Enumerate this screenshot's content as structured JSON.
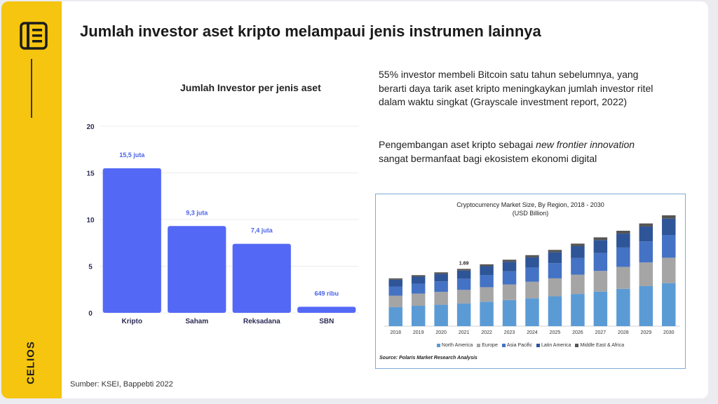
{
  "brand": "CELIOS",
  "title": "Jumlah investor aset kripto melampaui jenis instrumen lainnya",
  "colors": {
    "sidebar": "#f5c50f",
    "bar": "#5468f6",
    "bar_label": "#4b63e8"
  },
  "chart_data": [
    {
      "type": "bar",
      "title": "Jumlah Investor per jenis aset",
      "categories": [
        "Kripto",
        "Saham",
        "Reksadana",
        "SBN"
      ],
      "values": [
        15.5,
        9.3,
        7.4,
        0.649
      ],
      "data_labels": [
        "15,5 juta",
        "9,3 juta",
        "7,4 juta",
        "649 ribu"
      ],
      "yticks": [
        "0",
        "5",
        "10",
        "15",
        "20"
      ],
      "ylim": [
        0,
        20
      ],
      "grid": true,
      "xlabel": "",
      "ylabel": ""
    },
    {
      "type": "bar",
      "stacked": true,
      "title": "Cryptocurrency Market Size, By Region, 2018 - 2030",
      "subtitle": "(USD Billion)",
      "categories": [
        "2018",
        "2019",
        "2020",
        "2021",
        "2022",
        "2023",
        "2024",
        "2025",
        "2026",
        "2027",
        "2028",
        "2029",
        "2030"
      ],
      "annotations": [
        {
          "category": "2021",
          "text": "1.69"
        }
      ],
      "series": [
        {
          "name": "North America",
          "color": "#5b9bd5",
          "values": [
            0.56,
            0.6,
            0.63,
            0.67,
            0.72,
            0.77,
            0.82,
            0.88,
            0.95,
            1.02,
            1.1,
            1.18,
            1.27
          ]
        },
        {
          "name": "Europe",
          "color": "#a5a5a5",
          "values": [
            0.34,
            0.36,
            0.38,
            0.4,
            0.43,
            0.46,
            0.49,
            0.53,
            0.57,
            0.61,
            0.65,
            0.7,
            0.75
          ]
        },
        {
          "name": "Asia Pacific",
          "color": "#4472c4",
          "values": [
            0.27,
            0.29,
            0.31,
            0.33,
            0.36,
            0.39,
            0.42,
            0.45,
            0.49,
            0.53,
            0.57,
            0.62,
            0.67
          ]
        },
        {
          "name": "Latin America",
          "color": "#2e5597",
          "values": [
            0.2,
            0.21,
            0.22,
            0.24,
            0.26,
            0.28,
            0.3,
            0.32,
            0.35,
            0.38,
            0.41,
            0.44,
            0.48
          ]
        },
        {
          "name": "Middle East & Africa",
          "color": "#555555",
          "values": [
            0.04,
            0.045,
            0.048,
            0.05,
            0.055,
            0.06,
            0.065,
            0.07,
            0.075,
            0.08,
            0.085,
            0.09,
            0.1
          ]
        }
      ],
      "legend": "bottom",
      "source": "Source: Polaris Market Research Analysis"
    }
  ],
  "paragraph1": "55% investor membeli Bitcoin satu tahun sebelumnya, yang berarti daya tarik aset kripto meningkaykan jumlah investor ritel dalam waktu singkat (Grayscale investment report, 2022)",
  "paragraph2": {
    "before": "Pengembangan aset kripto sebagai ",
    "italic": "new frontier innovation",
    "after": " sangat bermanfaat bagi ekosistem ekonomi digital"
  },
  "source": "Sumber: KSEI, Bappebti 2022"
}
